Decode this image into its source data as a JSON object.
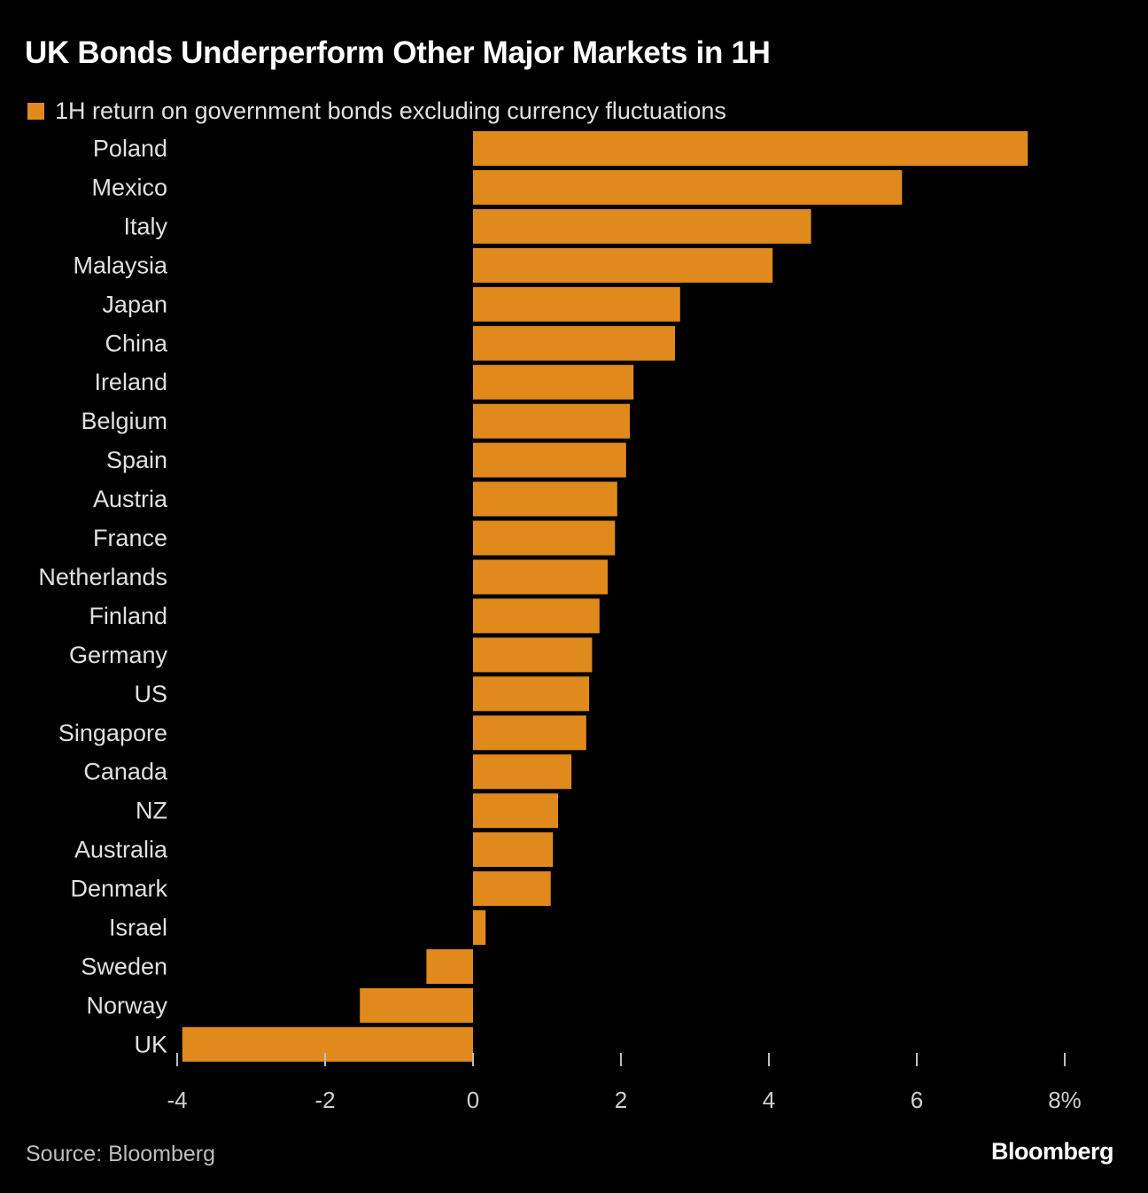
{
  "chart_data": {
    "type": "bar",
    "orientation": "horizontal",
    "title": "UK Bonds Underperform Other Major Markets in 1H",
    "legend": [
      {
        "label": "1H return on government bonds excluding currency fluctuations",
        "color": "#e08a1e"
      }
    ],
    "categories": [
      "Poland",
      "Mexico",
      "Italy",
      "Malaysia",
      "Japan",
      "China",
      "Ireland",
      "Belgium",
      "Spain",
      "Austria",
      "France",
      "Netherlands",
      "Finland",
      "Germany",
      "US",
      "Singapore",
      "Canada",
      "NZ",
      "Australia",
      "Denmark",
      "Israel",
      "Sweden",
      "Norway",
      "UK"
    ],
    "values": [
      7.5,
      5.8,
      4.57,
      4.05,
      2.8,
      2.73,
      2.17,
      2.12,
      2.07,
      1.95,
      1.92,
      1.82,
      1.71,
      1.61,
      1.57,
      1.53,
      1.33,
      1.15,
      1.08,
      1.05,
      0.17,
      -0.63,
      -1.53,
      -3.93
    ],
    "x_ticks": [
      -4,
      -2,
      0,
      2,
      4,
      6,
      8
    ],
    "x_tick_labels": [
      "-4",
      "-2",
      "0",
      "2",
      "4",
      "6",
      "8%"
    ],
    "xlim": [
      -4,
      8
    ],
    "xlabel": "",
    "ylabel": "",
    "grid": false,
    "bar_color": "#e08a1e"
  },
  "footer": {
    "source": "Source: Bloomberg",
    "brand": "Bloomberg"
  }
}
